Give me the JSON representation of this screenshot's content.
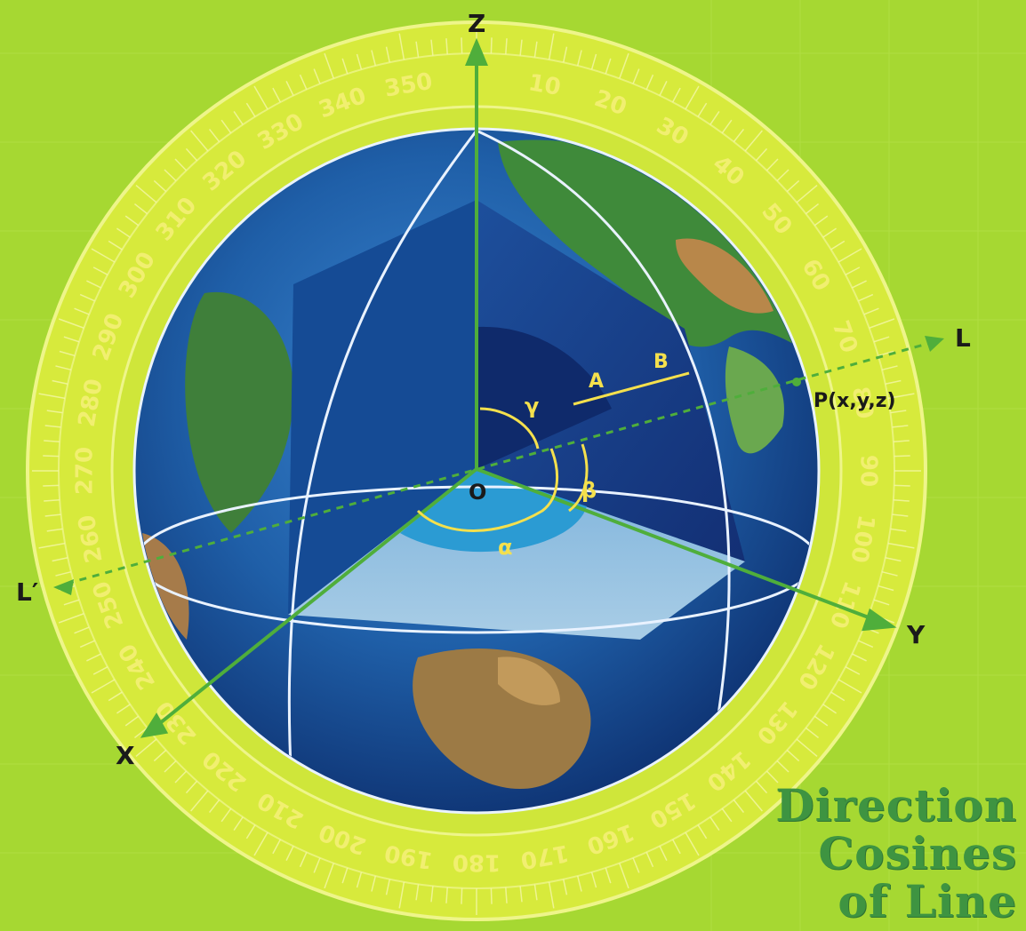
{
  "axes": {
    "z": "Z",
    "y": "Y",
    "x": "X",
    "l": "L",
    "l_prime": "L′"
  },
  "point": {
    "p_label": "P(x,y,z)",
    "origin": "O"
  },
  "angles": {
    "alpha": "α",
    "beta": "β",
    "gamma": "γ"
  },
  "segment": {
    "a": "A",
    "b": "B"
  },
  "protractor_ticks": [
    "10",
    "20",
    "30",
    "40",
    "50",
    "60",
    "70",
    "80",
    "90",
    "100",
    "110",
    "120",
    "130",
    "140",
    "150",
    "160",
    "170",
    "180",
    "190",
    "200",
    "210",
    "220",
    "230",
    "240",
    "250",
    "260",
    "270",
    "280",
    "290",
    "300",
    "310",
    "320",
    "330",
    "340",
    "350"
  ],
  "title": {
    "line1": "Direction",
    "line2": "Cosines",
    "line3": "of Line"
  },
  "colors": {
    "background": "#a6d832",
    "protractor": "#d9ea3a",
    "axis": "#4fae3b",
    "ocean": "#1f5fa8",
    "core_dark": "#0f2a6b",
    "title": "#3e9441"
  }
}
